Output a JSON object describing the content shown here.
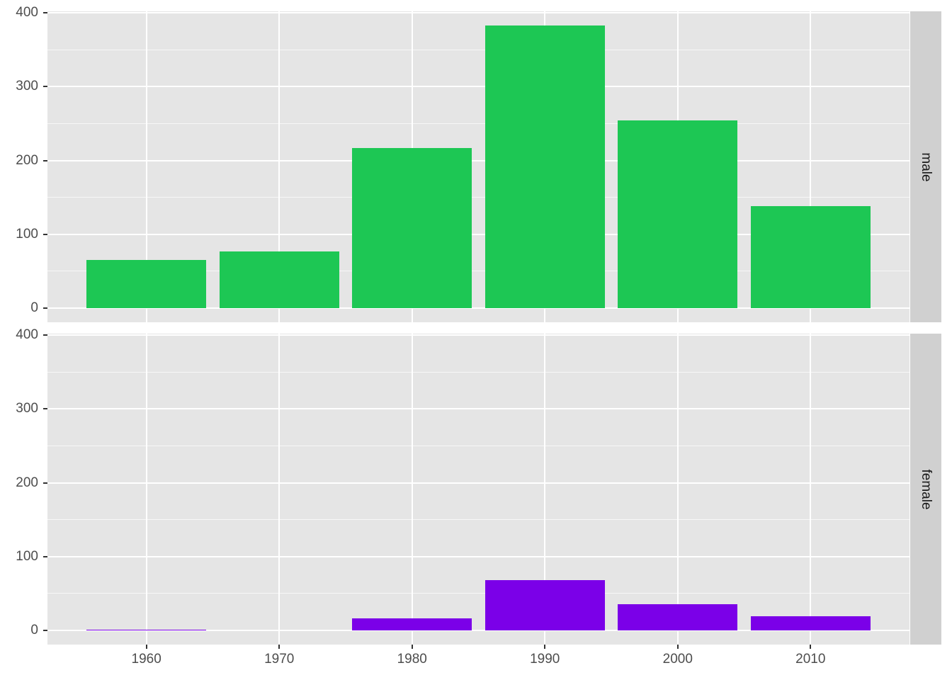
{
  "chart_data": {
    "type": "bar",
    "title": "",
    "xlabel": "",
    "ylabel": "",
    "facet_by": "gender",
    "categories": [
      1960,
      1970,
      1980,
      1990,
      2000,
      2010
    ],
    "xticks": [
      "1960",
      "1970",
      "1980",
      "1990",
      "2000",
      "2010"
    ],
    "yticks": [
      "0",
      "100",
      "200",
      "300",
      "400"
    ],
    "ylim": [
      0,
      400
    ],
    "grid": true,
    "legend": "none",
    "series": [
      {
        "name": "male",
        "color": "#1dc754",
        "values": [
          65,
          77,
          217,
          383,
          254,
          138
        ]
      },
      {
        "name": "female",
        "color": "#7b00e8",
        "values": [
          1,
          0,
          16,
          68,
          36,
          19
        ]
      }
    ]
  },
  "panels": [
    {
      "label": "male"
    },
    {
      "label": "female"
    }
  ],
  "colors": {
    "panel_background": "#e5e5e5",
    "strip_background": "#d0d0d0",
    "male": "#1dc754",
    "female": "#7b00e8"
  }
}
